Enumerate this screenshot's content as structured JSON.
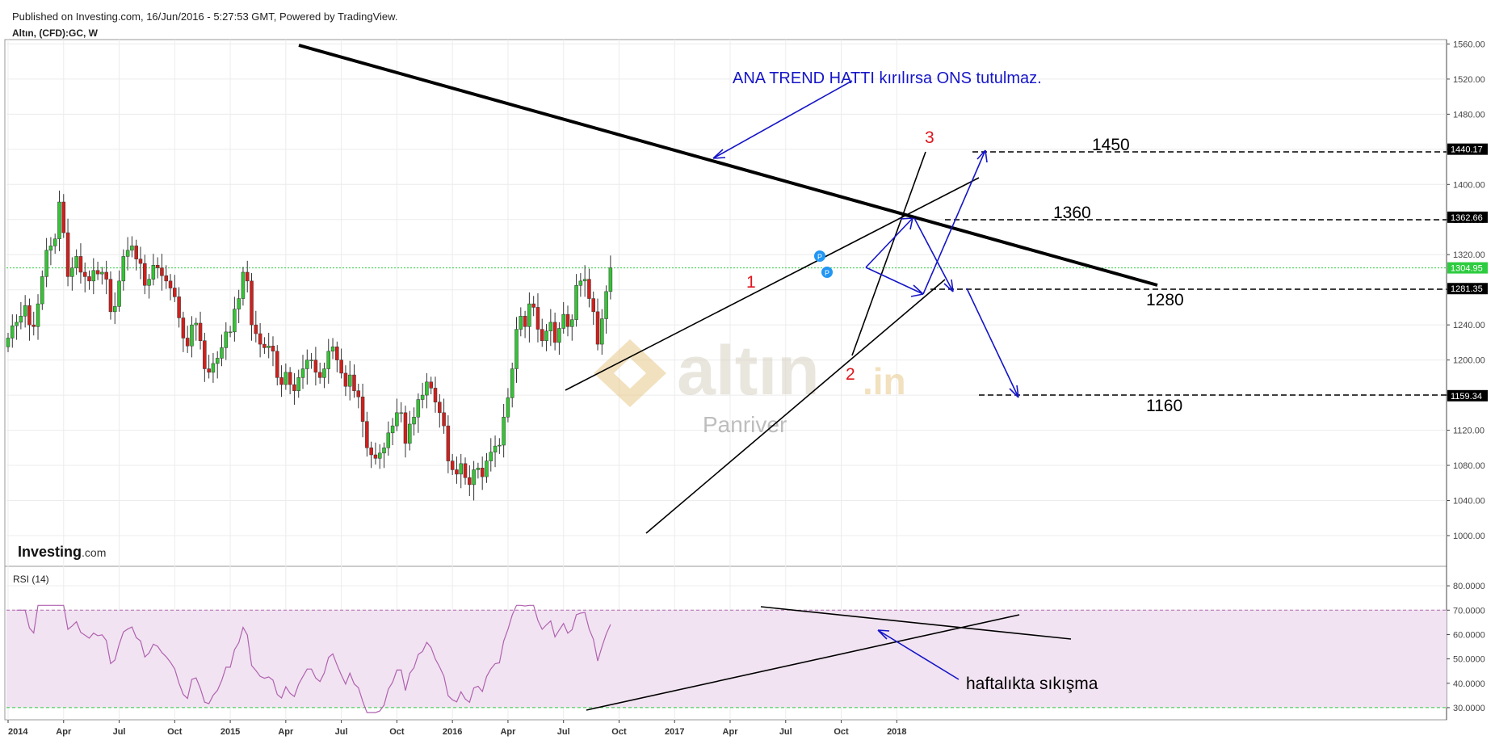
{
  "header": {
    "published": "Published on Investing.com, 16/Jun/2016 - 5:27:53 GMT, Powered by TradingView.",
    "symbol": "Altın, (CFD):GC, W"
  },
  "chart_data": {
    "type": "candlestick",
    "title": "",
    "y_axis": {
      "ylim": [
        965,
        1565
      ],
      "ticks": [
        "1560.00",
        "1520.00",
        "1480.00",
        "1440.00",
        "1400.00",
        "1360.00",
        "1320.00",
        "1280.00",
        "1240.00",
        "1200.00",
        "1160.00",
        "1120.00",
        "1080.00",
        "1040.00",
        "1000.00"
      ],
      "tick_values": [
        1560,
        1520,
        1480,
        1440,
        1400,
        1360,
        1320,
        1280,
        1240,
        1200,
        1160,
        1120,
        1080,
        1040,
        1000
      ],
      "price_tags": [
        {
          "label": "1440.17",
          "value": 1440.17,
          "color": "#000000"
        },
        {
          "label": "1362.66",
          "value": 1362.66,
          "color": "#000000"
        },
        {
          "label": "1304.95",
          "value": 1304.95,
          "color": "#2ecc40"
        },
        {
          "label": "1281.35",
          "value": 1281.35,
          "color": "#000000"
        },
        {
          "label": "1159.34",
          "value": 1159.34,
          "color": "#000000"
        }
      ]
    },
    "x_axis": {
      "labels": [
        "2014",
        "Apr",
        "Jul",
        "Oct",
        "2015",
        "Apr",
        "Jul",
        "Oct",
        "2016",
        "Apr",
        "Jul",
        "Oct",
        "2017",
        "Apr",
        "Jul",
        "Oct",
        "2018"
      ],
      "label_t": [
        0,
        13,
        26,
        39,
        52,
        65,
        78,
        91,
        104,
        117,
        130,
        143,
        156,
        169,
        182,
        195,
        208
      ]
    },
    "current_price": 1304.95,
    "closes_weekly": [
      1225,
      1239,
      1243,
      1250,
      1262,
      1240,
      1238,
      1264,
      1295,
      1325,
      1330,
      1338,
      1380,
      1345,
      1295,
      1305,
      1318,
      1300,
      1295,
      1290,
      1302,
      1298,
      1300,
      1292,
      1255,
      1261,
      1290,
      1318,
      1325,
      1330,
      1315,
      1310,
      1285,
      1292,
      1308,
      1305,
      1296,
      1290,
      1282,
      1272,
      1248,
      1225,
      1216,
      1240,
      1242,
      1222,
      1190,
      1186,
      1196,
      1202,
      1214,
      1232,
      1232,
      1258,
      1270,
      1300,
      1290,
      1240,
      1230,
      1218,
      1214,
      1216,
      1210,
      1180,
      1172,
      1186,
      1172,
      1165,
      1180,
      1190,
      1200,
      1200,
      1186,
      1180,
      1190,
      1210,
      1215,
      1200,
      1185,
      1170,
      1183,
      1165,
      1158,
      1130,
      1100,
      1092,
      1088,
      1094,
      1100,
      1117,
      1125,
      1140,
      1140,
      1105,
      1127,
      1135,
      1155,
      1160,
      1175,
      1168,
      1152,
      1140,
      1125,
      1085,
      1075,
      1070,
      1082,
      1066,
      1058,
      1075,
      1077,
      1067,
      1085,
      1095,
      1102,
      1103,
      1135,
      1157,
      1190,
      1235,
      1250,
      1238,
      1264,
      1260,
      1235,
      1222,
      1233,
      1243,
      1220,
      1236,
      1252,
      1238,
      1246,
      1285,
      1290,
      1292,
      1270,
      1255,
      1218,
      1247,
      1278,
      1305
    ],
    "rsi": {
      "title": "RSI (14)",
      "ylim": [
        25,
        88
      ],
      "ticks": [
        "80.0000",
        "70.0000",
        "60.0000",
        "50.0000",
        "40.0000",
        "30.0000"
      ],
      "tick_values": [
        80,
        70,
        60,
        50,
        40,
        30
      ],
      "band": [
        30,
        70
      ]
    },
    "annotations": {
      "main_trend_text": "ANA TREND HATTI kırılırsa ONS tutulmaz.",
      "label_1": "1",
      "label_2": "2",
      "label_3": "3",
      "level_1450": "1450",
      "level_1360": "1360",
      "level_1280": "1280",
      "level_1160": "1160",
      "rsi_note": "haftalıkta sıkışma"
    },
    "watermark": {
      "brand": "altın",
      "suffix": ".in",
      "sub": "Panriver"
    }
  },
  "branding": {
    "logo_bold": "Investing",
    "logo_suffix": ".com"
  },
  "colors": {
    "up": "#35c435",
    "down": "#d0201c",
    "annotation_blue": "#1515c8",
    "annotation_red": "#e0141a",
    "rsi_band": "#f1e3f1",
    "rsi_line": "#b062b0"
  }
}
